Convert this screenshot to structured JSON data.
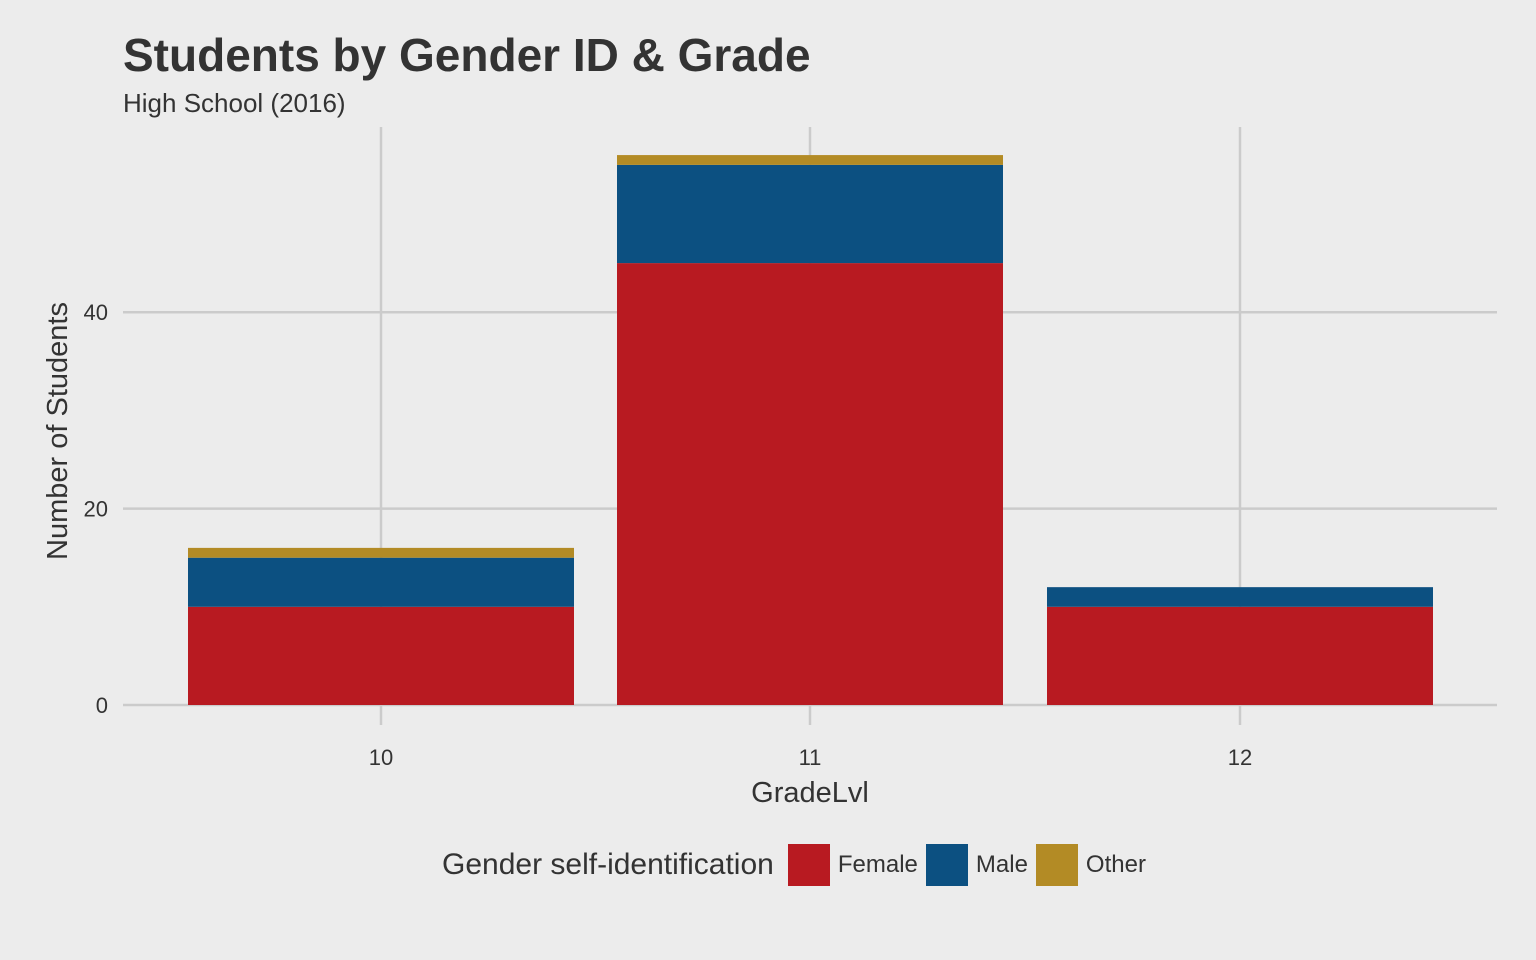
{
  "chart_data": {
    "type": "bar",
    "stacked": true,
    "title": "Students by Gender ID & Grade",
    "subtitle": "High School (2016)",
    "xlabel": "GradeLvl",
    "ylabel": "Number of Students",
    "categories": [
      "10",
      "11",
      "12"
    ],
    "series": [
      {
        "name": "Female",
        "color": "#b81a21",
        "values": [
          10,
          45,
          10
        ]
      },
      {
        "name": "Male",
        "color": "#0c5081",
        "values": [
          5,
          10,
          2
        ]
      },
      {
        "name": "Other",
        "color": "#b38b25",
        "values": [
          1,
          1,
          0
        ]
      }
    ],
    "yticks": [
      0,
      20,
      40
    ],
    "ylim": [
      0,
      58
    ],
    "grid": true,
    "legend_title": "Gender self-identification",
    "legend_position": "bottom",
    "background": "#ececec",
    "grid_color": "#cbcbcb"
  }
}
